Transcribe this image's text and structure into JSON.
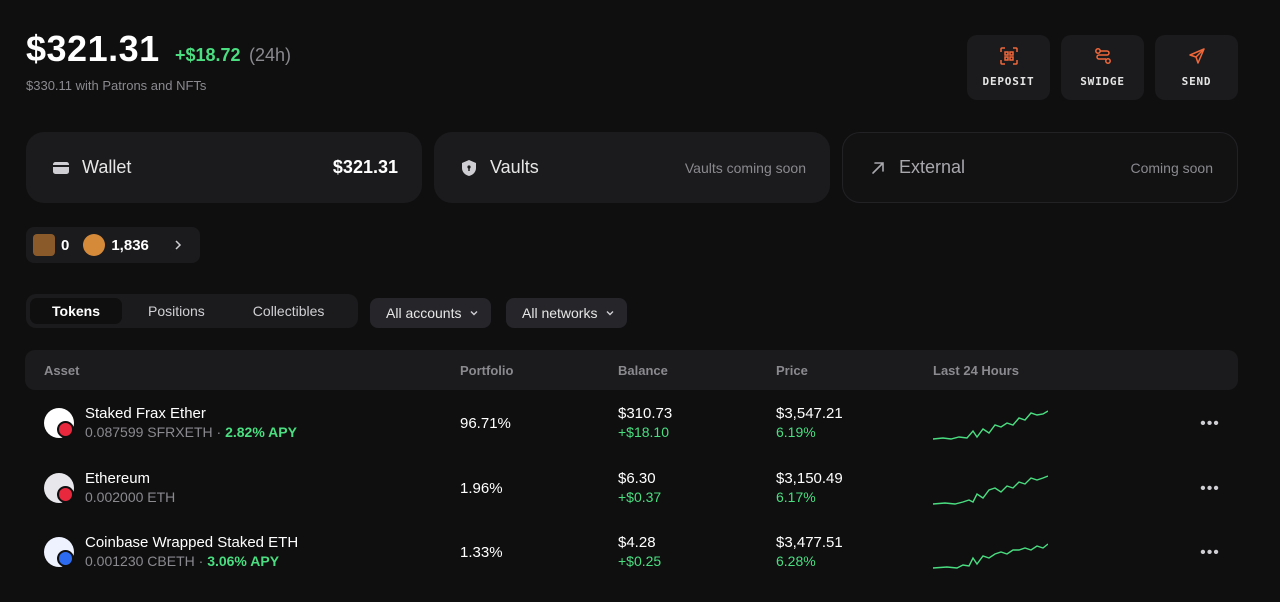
{
  "header": {
    "total_value": "$321.31",
    "change_24h": "+$18.72",
    "change_period": "(24h)",
    "subtitle": "$330.11 with Patrons and NFTs"
  },
  "actions": [
    {
      "label": "DEPOSIT",
      "icon": "qr-scan-icon"
    },
    {
      "label": "SWIDGE",
      "icon": "swap-route-icon"
    },
    {
      "label": "SEND",
      "icon": "send-arrow-icon"
    }
  ],
  "cards": {
    "wallet": {
      "title": "Wallet",
      "value": "$321.31",
      "icon": "wallet-icon"
    },
    "vaults": {
      "title": "Vaults",
      "value": "Vaults coming soon",
      "icon": "shield-icon"
    },
    "external": {
      "title": "External",
      "value": "Coming soon",
      "icon": "external-arrow-icon"
    }
  },
  "points": {
    "nft_count": "0",
    "points": "1,836"
  },
  "tabs": [
    {
      "label": "Tokens",
      "active": true
    },
    {
      "label": "Positions",
      "active": false
    },
    {
      "label": "Collectibles",
      "active": false
    }
  ],
  "filters": {
    "accounts": "All accounts",
    "networks": "All networks"
  },
  "table": {
    "headers": {
      "asset": "Asset",
      "portfolio": "Portfolio",
      "balance": "Balance",
      "price": "Price",
      "last24": "Last 24 Hours"
    },
    "rows": [
      {
        "name": "Staked Frax Ether",
        "amount": "0.087599 SFRXETH",
        "separator": " · ",
        "apy": "2.82% APY",
        "portfolio": "96.71%",
        "balance": "$310.73",
        "balance_change": "+$18.10",
        "price": "$3,547.21",
        "price_change": "6.19%",
        "accent": "#4ade80"
      },
      {
        "name": "Ethereum",
        "amount": "0.002000 ETH",
        "separator": "",
        "apy": "",
        "portfolio": "1.96%",
        "balance": "$6.30",
        "balance_change": "+$0.37",
        "price": "$3,150.49",
        "price_change": "6.17%",
        "accent": "#4ade80"
      },
      {
        "name": "Coinbase Wrapped Staked ETH",
        "amount": "0.001230 CBETH",
        "separator": " · ",
        "apy": "3.06% APY",
        "portfolio": "1.33%",
        "balance": "$4.28",
        "balance_change": "+$0.25",
        "price": "$3,477.51",
        "price_change": "6.28%",
        "accent": "#4ade80"
      }
    ]
  },
  "colors": {
    "background": "#0f0f10",
    "card": "#1b1b1d",
    "positive": "#4ade80",
    "accent_orange": "#f0683a"
  }
}
